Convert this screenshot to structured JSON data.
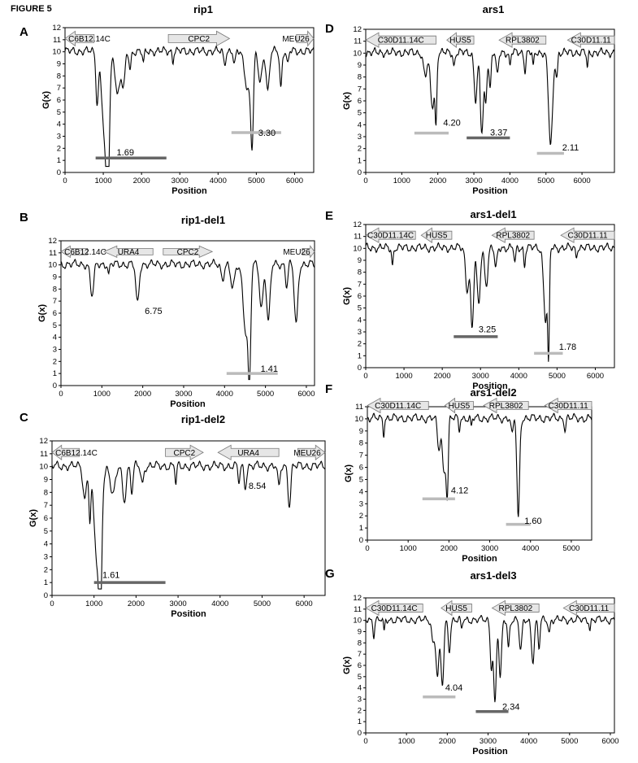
{
  "figure_label": "FIGURE 5",
  "charts": [
    {
      "letter": "A",
      "title": "rip1",
      "xlabel": "Position",
      "ylabel": "G(x)",
      "xlim": [
        0,
        6500
      ],
      "xticks": [
        0,
        1000,
        2000,
        3000,
        4000,
        5000,
        6000
      ],
      "ylim": [
        0,
        12
      ],
      "genes": [
        {
          "label": "C6B12.14C",
          "start": 0,
          "end": 760,
          "dir": "left",
          "size": "large"
        },
        {
          "label": "CPC2",
          "start": 2700,
          "end": 4300,
          "dir": "right",
          "size": "large"
        },
        {
          "label": "MEU26",
          "start": 6050,
          "end": 6500,
          "dir": "right",
          "size": "large"
        }
      ],
      "annotations": [
        {
          "label": "1.69",
          "x": 1350,
          "y": 1.69
        },
        {
          "label": "3.30",
          "x": 5050,
          "y": 3.3
        }
      ],
      "bars": [
        {
          "x1": 800,
          "x2": 2650,
          "y": 1.2,
          "color": "#666666"
        },
        {
          "x1": 4350,
          "x2": 5650,
          "y": 3.3,
          "color": "#bbbbbb"
        }
      ],
      "signal": [
        {
          "center": 840,
          "depth": 4.2,
          "width": 45
        },
        {
          "center": 1050,
          "depth": 7.5,
          "width": 110
        },
        {
          "center": 1120,
          "depth": 8.4,
          "width": 55
        },
        {
          "center": 1380,
          "depth": 3.5,
          "width": 90
        },
        {
          "center": 1530,
          "depth": 2.8,
          "width": 60
        },
        {
          "center": 1700,
          "depth": 1.5,
          "width": 40
        },
        {
          "center": 2050,
          "depth": 1.0,
          "width": 35
        },
        {
          "center": 2820,
          "depth": 0.8,
          "width": 25
        },
        {
          "center": 4170,
          "depth": 1.0,
          "width": 40
        },
        {
          "center": 4430,
          "depth": 1.2,
          "width": 40
        },
        {
          "center": 4780,
          "depth": 3.2,
          "width": 110
        },
        {
          "center": 4890,
          "depth": 6.8,
          "width": 50
        },
        {
          "center": 5100,
          "depth": 2.5,
          "width": 70
        },
        {
          "center": 5300,
          "depth": 3.3,
          "width": 60
        },
        {
          "center": 5640,
          "depth": 3.0,
          "width": 40
        },
        {
          "center": 5820,
          "depth": 1.2,
          "width": 35
        }
      ]
    },
    {
      "letter": "B",
      "title": "rip1-del1",
      "xlabel": "Position",
      "ylabel": "G(x)",
      "xlim": [
        0,
        6200
      ],
      "xticks": [
        0,
        1000,
        2000,
        3000,
        4000,
        5000,
        6000
      ],
      "ylim": [
        0,
        12
      ],
      "genes": [
        {
          "label": "C6B12.14C",
          "start": 0,
          "end": 650,
          "dir": "left",
          "size": "small"
        },
        {
          "label": "URA4",
          "start": 1050,
          "end": 2250,
          "dir": "left",
          "size": "small"
        },
        {
          "label": "CPC2",
          "start": 2500,
          "end": 3700,
          "dir": "right",
          "size": "small"
        },
        {
          "label": "MEU26",
          "start": 5900,
          "end": 6200,
          "dir": "right",
          "size": "small"
        }
      ],
      "annotations": [
        {
          "label": "6.75",
          "x": 2050,
          "y": 6.2
        },
        {
          "label": "1.41",
          "x": 4880,
          "y": 1.41
        }
      ],
      "bars": [
        {
          "x1": 4050,
          "x2": 5300,
          "y": 1.0,
          "color": "#bbbbbb"
        }
      ],
      "signal": [
        {
          "center": 760,
          "depth": 2.6,
          "width": 60
        },
        {
          "center": 1870,
          "depth": 3.3,
          "width": 55
        },
        {
          "center": 1170,
          "depth": 1.0,
          "width": 25
        },
        {
          "center": 3950,
          "depth": 1.2,
          "width": 50
        },
        {
          "center": 4200,
          "depth": 2.0,
          "width": 70
        },
        {
          "center": 4520,
          "depth": 5.5,
          "width": 90
        },
        {
          "center": 4610,
          "depth": 8.2,
          "width": 45
        },
        {
          "center": 4900,
          "depth": 3.6,
          "width": 60
        },
        {
          "center": 5070,
          "depth": 4.8,
          "width": 60
        },
        {
          "center": 5520,
          "depth": 1.8,
          "width": 40
        },
        {
          "center": 5750,
          "depth": 5.0,
          "width": 60
        }
      ]
    },
    {
      "letter": "C",
      "title": "rip1-del2",
      "xlabel": "Position",
      "ylabel": "G(x)",
      "xlim": [
        0,
        6500
      ],
      "xticks": [
        0,
        1000,
        2000,
        3000,
        4000,
        5000,
        6000
      ],
      "ylim": [
        0,
        12
      ],
      "genes": [
        {
          "label": "C6B12.14C",
          "start": 0,
          "end": 650,
          "dir": "left",
          "size": "large"
        },
        {
          "label": "CPC2",
          "start": 2700,
          "end": 3600,
          "dir": "right",
          "size": "large"
        },
        {
          "label": "URA4",
          "start": 3950,
          "end": 5400,
          "dir": "left",
          "size": "large"
        },
        {
          "label": "MEU26",
          "start": 5850,
          "end": 6500,
          "dir": "right",
          "size": "large"
        }
      ],
      "annotations": [
        {
          "label": "1.61",
          "x": 1200,
          "y": 1.61
        },
        {
          "label": "8.54",
          "x": 4680,
          "y": 8.54
        }
      ],
      "bars": [
        {
          "x1": 1000,
          "x2": 2700,
          "y": 1.0,
          "color": "#666666"
        }
      ],
      "signal": [
        {
          "center": 780,
          "depth": 2.5,
          "width": 60
        },
        {
          "center": 900,
          "depth": 3.8,
          "width": 30
        },
        {
          "center": 1080,
          "depth": 7.5,
          "width": 110
        },
        {
          "center": 1150,
          "depth": 8.4,
          "width": 45
        },
        {
          "center": 1450,
          "depth": 2.3,
          "width": 80
        },
        {
          "center": 1720,
          "depth": 2.6,
          "width": 60
        },
        {
          "center": 1900,
          "depth": 2.0,
          "width": 40
        },
        {
          "center": 2150,
          "depth": 1.4,
          "width": 45
        },
        {
          "center": 2950,
          "depth": 1.5,
          "width": 25
        },
        {
          "center": 4450,
          "depth": 1.2,
          "width": 35
        },
        {
          "center": 4600,
          "depth": 1.6,
          "width": 40
        },
        {
          "center": 5400,
          "depth": 1.7,
          "width": 40
        },
        {
          "center": 5650,
          "depth": 3.0,
          "width": 45
        }
      ]
    },
    {
      "letter": "D",
      "title": "ars1",
      "xlabel": "Position",
      "ylabel": "G(x)",
      "xlim": [
        0,
        6900
      ],
      "xticks": [
        0,
        1000,
        2000,
        3000,
        4000,
        5000,
        6000
      ],
      "ylim": [
        0,
        12
      ],
      "genes": [
        {
          "label": "C30D11.14C",
          "start": 0,
          "end": 1950,
          "dir": "left",
          "size": "large"
        },
        {
          "label": "HUS5",
          "start": 2250,
          "end": 3000,
          "dir": "left",
          "size": "large"
        },
        {
          "label": "RPL3802",
          "start": 3700,
          "end": 5000,
          "dir": "left",
          "size": "large"
        },
        {
          "label": "C30D11.11",
          "start": 5600,
          "end": 6900,
          "dir": "left",
          "size": "large"
        }
      ],
      "annotations": [
        {
          "label": "4.20",
          "x": 2150,
          "y": 4.2
        },
        {
          "label": "3.37",
          "x": 3450,
          "y": 3.37
        },
        {
          "label": "2.11",
          "x": 5450,
          "y": 2.11
        }
      ],
      "bars": [
        {
          "x1": 1350,
          "x2": 2300,
          "y": 3.3,
          "color": "#bbbbbb"
        },
        {
          "x1": 2800,
          "x2": 4000,
          "y": 2.9,
          "color": "#666666"
        },
        {
          "x1": 4750,
          "x2": 5500,
          "y": 1.6,
          "color": "#bbbbbb"
        }
      ],
      "signal": [
        {
          "center": 1650,
          "depth": 2.0,
          "width": 70
        },
        {
          "center": 1850,
          "depth": 4.5,
          "width": 80
        },
        {
          "center": 1950,
          "depth": 5.2,
          "width": 35
        },
        {
          "center": 2450,
          "depth": 1.2,
          "width": 35
        },
        {
          "center": 3050,
          "depth": 4.0,
          "width": 60
        },
        {
          "center": 3220,
          "depth": 6.7,
          "width": 60
        },
        {
          "center": 3330,
          "depth": 4.0,
          "width": 45
        },
        {
          "center": 3450,
          "depth": 3.0,
          "width": 40
        },
        {
          "center": 3650,
          "depth": 2.0,
          "width": 45
        },
        {
          "center": 4000,
          "depth": 1.2,
          "width": 30
        },
        {
          "center": 4420,
          "depth": 1.5,
          "width": 35
        },
        {
          "center": 4650,
          "depth": 1.3,
          "width": 30
        },
        {
          "center": 5130,
          "depth": 7.8,
          "width": 80
        },
        {
          "center": 5300,
          "depth": 2.0,
          "width": 35
        },
        {
          "center": 6150,
          "depth": 1.3,
          "width": 30
        }
      ]
    },
    {
      "letter": "E",
      "title": "ars1-del1",
      "xlabel": "Position",
      "ylabel": "G(x)",
      "xlim": [
        0,
        6500
      ],
      "xticks": [
        0,
        1000,
        2000,
        3000,
        4000,
        5000,
        6000
      ],
      "ylim": [
        0,
        12
      ],
      "genes": [
        {
          "label": "C30D11.14C",
          "start": 0,
          "end": 1300,
          "dir": "left",
          "size": "large"
        },
        {
          "label": "HUS5",
          "start": 1450,
          "end": 2250,
          "dir": "left",
          "size": "large"
        },
        {
          "label": "RPL3802",
          "start": 3300,
          "end": 4400,
          "dir": "left",
          "size": "large"
        },
        {
          "label": "C30D11.11",
          "start": 5100,
          "end": 6500,
          "dir": "left",
          "size": "large"
        }
      ],
      "annotations": [
        {
          "label": "3.25",
          "x": 2950,
          "y": 3.25
        },
        {
          "label": "1.78",
          "x": 5050,
          "y": 1.78
        }
      ],
      "bars": [
        {
          "x1": 2300,
          "x2": 3450,
          "y": 2.6,
          "color": "#666666"
        },
        {
          "x1": 4400,
          "x2": 5150,
          "y": 1.2,
          "color": "#bbbbbb"
        }
      ],
      "signal": [
        {
          "center": 700,
          "depth": 1.5,
          "width": 30
        },
        {
          "center": 2650,
          "depth": 3.5,
          "width": 60
        },
        {
          "center": 2780,
          "depth": 6.8,
          "width": 55
        },
        {
          "center": 2950,
          "depth": 4.8,
          "width": 60
        },
        {
          "center": 3150,
          "depth": 3.0,
          "width": 60
        },
        {
          "center": 3400,
          "depth": 1.8,
          "width": 45
        },
        {
          "center": 3900,
          "depth": 1.4,
          "width": 30
        },
        {
          "center": 4150,
          "depth": 1.5,
          "width": 30
        },
        {
          "center": 4700,
          "depth": 6.0,
          "width": 70
        },
        {
          "center": 4780,
          "depth": 8.2,
          "width": 30
        },
        {
          "center": 5500,
          "depth": 0.8,
          "width": 25
        }
      ]
    },
    {
      "letter": "F",
      "title": "ars1-del2",
      "xlabel": "Position",
      "ylabel": "G(x)",
      "xlim": [
        0,
        5500
      ],
      "xticks": [
        0,
        1000,
        2000,
        3000,
        4000,
        5000
      ],
      "ylim": [
        0,
        11
      ],
      "genes": [
        {
          "label": "C30D11.14C",
          "start": 0,
          "end": 1500,
          "dir": "left",
          "size": "large"
        },
        {
          "label": "HUS5",
          "start": 1900,
          "end": 2600,
          "dir": "left",
          "size": "large"
        },
        {
          "label": "RPL3802",
          "start": 2850,
          "end": 3950,
          "dir": "left",
          "size": "large"
        },
        {
          "label": "C30D11.11",
          "start": 4350,
          "end": 5500,
          "dir": "left",
          "size": "large"
        }
      ],
      "annotations": [
        {
          "label": "4.12",
          "x": 2050,
          "y": 4.12
        },
        {
          "label": "1.60",
          "x": 3850,
          "y": 1.6
        }
      ],
      "bars": [
        {
          "x1": 1350,
          "x2": 2150,
          "y": 3.4,
          "color": "#bbbbbb"
        },
        {
          "x1": 3400,
          "x2": 4000,
          "y": 1.3,
          "color": "#bbbbbb"
        }
      ],
      "signal": [
        {
          "center": 400,
          "depth": 1.2,
          "width": 25
        },
        {
          "center": 1750,
          "depth": 2.5,
          "width": 50
        },
        {
          "center": 1880,
          "depth": 4.5,
          "width": 60
        },
        {
          "center": 1960,
          "depth": 5.8,
          "width": 35
        },
        {
          "center": 2250,
          "depth": 1.0,
          "width": 25
        },
        {
          "center": 2550,
          "depth": 0.8,
          "width": 25
        },
        {
          "center": 3550,
          "depth": 1.5,
          "width": 35
        },
        {
          "center": 3700,
          "depth": 8.3,
          "width": 45
        },
        {
          "center": 4850,
          "depth": 1.0,
          "width": 25
        }
      ]
    },
    {
      "letter": "G",
      "title": "ars1-del3",
      "xlabel": "Position",
      "ylabel": "G(x)",
      "xlim": [
        0,
        6100
      ],
      "xticks": [
        0,
        1000,
        2000,
        3000,
        4000,
        5000,
        6000
      ],
      "ylim": [
        0,
        12
      ],
      "genes": [
        {
          "label": "C30D11.14C",
          "start": 0,
          "end": 1400,
          "dir": "left",
          "size": "large"
        },
        {
          "label": "HUS5",
          "start": 1850,
          "end": 2600,
          "dir": "left",
          "size": "large"
        },
        {
          "label": "RPL3802",
          "start": 3100,
          "end": 4250,
          "dir": "left",
          "size": "large"
        },
        {
          "label": "C30D11.11",
          "start": 4850,
          "end": 6100,
          "dir": "left",
          "size": "large"
        }
      ],
      "annotations": [
        {
          "label": "4.04",
          "x": 1950,
          "y": 4.04
        },
        {
          "label": "2.34",
          "x": 3350,
          "y": 2.34
        }
      ],
      "bars": [
        {
          "x1": 1400,
          "x2": 2200,
          "y": 3.2,
          "color": "#bbbbbb"
        },
        {
          "x1": 2700,
          "x2": 3500,
          "y": 1.9,
          "color": "#666666"
        }
      ],
      "signal": [
        {
          "center": 200,
          "depth": 1.4,
          "width": 25
        },
        {
          "center": 450,
          "depth": 1.2,
          "width": 25
        },
        {
          "center": 1650,
          "depth": 2.0,
          "width": 45
        },
        {
          "center": 1760,
          "depth": 5.0,
          "width": 55
        },
        {
          "center": 1880,
          "depth": 5.8,
          "width": 50
        },
        {
          "center": 2050,
          "depth": 2.6,
          "width": 40
        },
        {
          "center": 2350,
          "depth": 1.0,
          "width": 25
        },
        {
          "center": 3080,
          "depth": 4.0,
          "width": 40
        },
        {
          "center": 3170,
          "depth": 7.5,
          "width": 45
        },
        {
          "center": 3300,
          "depth": 5.3,
          "width": 45
        },
        {
          "center": 3500,
          "depth": 2.5,
          "width": 35
        },
        {
          "center": 3800,
          "depth": 2.8,
          "width": 45
        },
        {
          "center": 4100,
          "depth": 3.6,
          "width": 50
        },
        {
          "center": 4250,
          "depth": 2.5,
          "width": 35
        },
        {
          "center": 4500,
          "depth": 1.2,
          "width": 30
        },
        {
          "center": 5500,
          "depth": 0.8,
          "width": 25
        }
      ]
    }
  ]
}
